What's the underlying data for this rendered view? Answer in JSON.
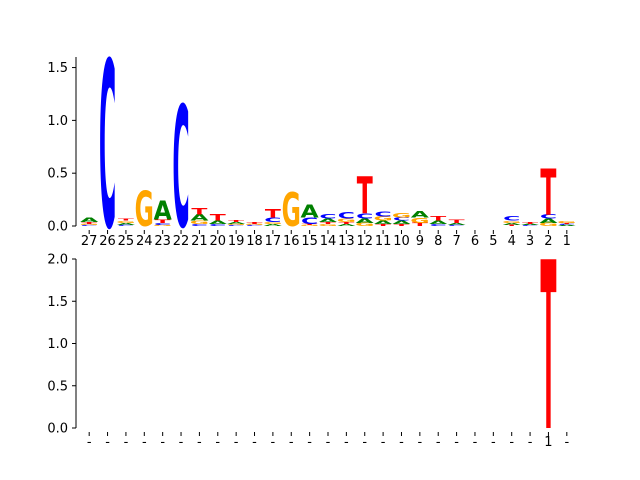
{
  "colors": {
    "A": "#008000",
    "C": "#0000ff",
    "G": "#ffa500",
    "T": "#ff0000",
    "axis": "#000000"
  },
  "chart_data": [
    {
      "type": "sequence-logo",
      "ylim": [
        0,
        1.6
      ],
      "yticks": [
        "0.0",
        "0.5",
        "1.0",
        "1.5"
      ],
      "positions": [
        "27",
        "26",
        "25",
        "24",
        "23",
        "22",
        "21",
        "20",
        "19",
        "18",
        "17",
        "16",
        "15",
        "14",
        "13",
        "12",
        "11",
        "10",
        "9",
        "8",
        "7",
        "6",
        "5",
        "4",
        "3",
        "2",
        "1"
      ],
      "heights": [
        {
          "A": 0.04,
          "C": 0.01,
          "G": 0.01,
          "T": 0.02
        },
        {
          "C": 1.58
        },
        {
          "A": 0.02,
          "C": 0.01,
          "G": 0.02,
          "T": 0.02
        },
        {
          "G": 0.33
        },
        {
          "A": 0.18,
          "T": 0.03,
          "C": 0.02,
          "G": 0.01
        },
        {
          "C": 1.15
        },
        {
          "A": 0.06,
          "T": 0.06,
          "G": 0.03,
          "C": 0.02
        },
        {
          "A": 0.03,
          "T": 0.06,
          "C": 0.02
        },
        {
          "A": 0.02,
          "C": 0.01,
          "G": 0.01,
          "T": 0.02
        },
        {
          "T": 0.02,
          "C": 0.01,
          "G": 0.01
        },
        {
          "A": 0.02,
          "C": 0.04,
          "G": 0.02,
          "T": 0.08
        },
        {
          "G": 0.32
        },
        {
          "C": 0.06,
          "A": 0.12,
          "G": 0.01,
          "T": 0.01
        },
        {
          "C": 0.04,
          "A": 0.03,
          "G": 0.02,
          "T": 0.02
        },
        {
          "A": 0.02,
          "C": 0.06,
          "G": 0.03,
          "T": 0.02
        },
        {
          "T": 0.35,
          "C": 0.05,
          "G": 0.03,
          "A": 0.04
        },
        {
          "A": 0.03,
          "G": 0.04,
          "C": 0.05,
          "T": 0.02
        },
        {
          "A": 0.03,
          "G": 0.04,
          "C": 0.03,
          "T": 0.02
        },
        {
          "A": 0.06,
          "G": 0.05,
          "T": 0.03
        },
        {
          "A": 0.03,
          "C": 0.02,
          "T": 0.04
        },
        {
          "A": 0.02,
          "C": 0.01,
          "T": 0.03
        },
        {},
        {},
        {
          "A": 0.02,
          "G": 0.02,
          "C": 0.04,
          "T": 0.01
        },
        {
          "C": 0.01,
          "T": 0.02,
          "A": 0.01
        },
        {
          "A": 0.04,
          "G": 0.03,
          "C": 0.04,
          "T": 0.44
        },
        {
          "A": 0.01,
          "G": 0.02,
          "C": 0.01,
          "T": 0.01
        }
      ]
    },
    {
      "type": "sequence-logo",
      "ylim": [
        0,
        2.0
      ],
      "yticks": [
        "0.0",
        "0.5",
        "1.0",
        "1.5",
        "2.0"
      ],
      "positions": [
        "-",
        "-",
        "-",
        "-",
        "-",
        "-",
        "-",
        "-",
        "-",
        "-",
        "-",
        "-",
        "-",
        "-",
        "-",
        "-",
        "-",
        "-",
        "-",
        "-",
        "-",
        "-",
        "-",
        "-",
        "-",
        "1",
        "-"
      ],
      "heights": [
        {},
        {},
        {},
        {},
        {},
        {},
        {},
        {},
        {},
        {},
        {},
        {},
        {},
        {},
        {},
        {},
        {},
        {},
        {},
        {},
        {},
        {},
        {},
        {},
        {},
        {
          "T": 2.0
        },
        {}
      ]
    }
  ]
}
